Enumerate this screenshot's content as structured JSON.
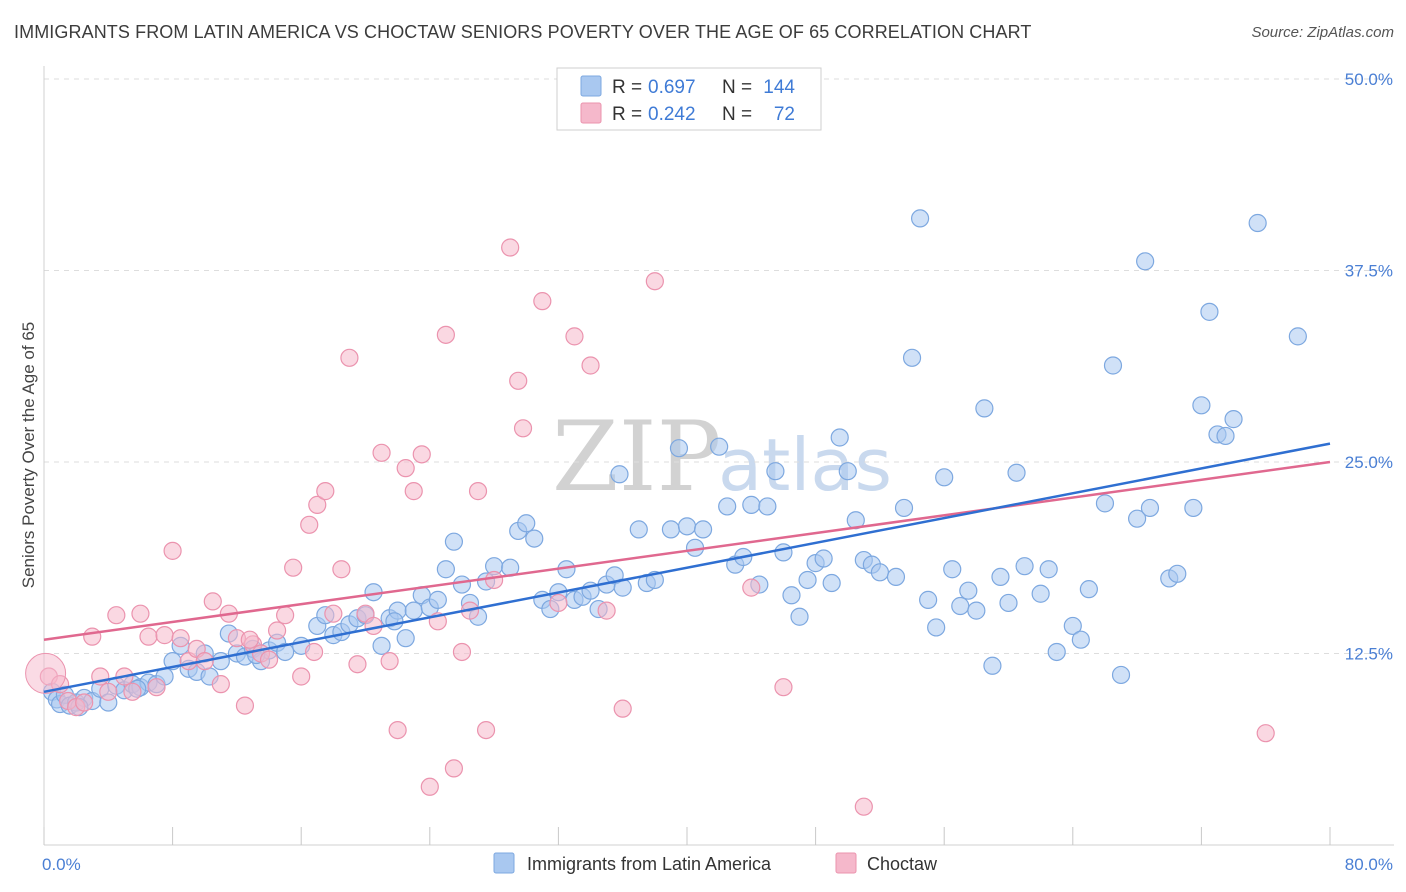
{
  "title": "IMMIGRANTS FROM LATIN AMERICA VS CHOCTAW SENIORS POVERTY OVER THE AGE OF 65 CORRELATION CHART",
  "source": "Source: ZipAtlas.com",
  "watermark": {
    "left": "ZIP",
    "right": "atlas"
  },
  "legend": {
    "rows": [
      {
        "r_label": "R =",
        "r_value": "0.697",
        "n_label": "N =",
        "n_value": "144"
      },
      {
        "r_label": "R =",
        "r_value": "0.242",
        "n_label": "N =",
        "n_value": "72"
      }
    ]
  },
  "colors": {
    "blue_fill": "#a9c8f0",
    "blue_stroke": "#7da8e0",
    "blue_line": "#2f6fd1",
    "pink_fill": "#f5b8cb",
    "pink_stroke": "#eb93ae",
    "pink_line": "#e0688f",
    "tick_text": "#4a7fd4",
    "grid": "#dddddd"
  },
  "chart_data": {
    "type": "scatter",
    "title": "IMMIGRANTS FROM LATIN AMERICA VS CHOCTAW SENIORS POVERTY OVER THE AGE OF 65 CORRELATION CHART",
    "xlabel": "",
    "ylabel": "Seniors Poverty Over the Age of 65",
    "xlim": [
      0,
      80
    ],
    "ylim": [
      0,
      50
    ],
    "x_tick_labels": [
      "0.0%",
      "80.0%"
    ],
    "y_ticks": [
      12.5,
      25.0,
      37.5,
      50.0
    ],
    "y_tick_labels": [
      "12.5%",
      "25.0%",
      "37.5%",
      "50.0%"
    ],
    "grid": "horizontal dashed",
    "legend_position": "top-center",
    "series": [
      {
        "name": "Immigrants from Latin America",
        "color": "#a9c8f0",
        "trend": {
          "x": [
            0,
            80
          ],
          "y": [
            10.0,
            26.2
          ]
        },
        "points": [
          [
            0.5,
            10.0
          ],
          [
            0.8,
            9.5
          ],
          [
            1.0,
            9.2
          ],
          [
            1.3,
            9.8
          ],
          [
            1.6,
            9.1
          ],
          [
            2.0,
            9.3
          ],
          [
            2.5,
            9.6
          ],
          [
            3.0,
            9.4
          ],
          [
            3.5,
            10.2
          ],
          [
            4.0,
            9.3
          ],
          [
            4.5,
            10.4
          ],
          [
            5.0,
            10.1
          ],
          [
            5.5,
            10.5
          ],
          [
            6.0,
            10.3
          ],
          [
            6.5,
            10.6
          ],
          [
            7.0,
            10.5
          ],
          [
            7.5,
            11.0
          ],
          [
            8.0,
            12.0
          ],
          [
            8.5,
            13.0
          ],
          [
            9.0,
            11.5
          ],
          [
            9.5,
            11.3
          ],
          [
            10.0,
            12.5
          ],
          [
            10.3,
            11.0
          ],
          [
            11.0,
            12.0
          ],
          [
            11.5,
            13.8
          ],
          [
            12.0,
            12.5
          ],
          [
            12.5,
            12.3
          ],
          [
            13.0,
            12.8
          ],
          [
            13.5,
            12.0
          ],
          [
            14.0,
            12.7
          ],
          [
            14.5,
            13.2
          ],
          [
            15.0,
            12.6
          ],
          [
            16.0,
            13.0
          ],
          [
            17.0,
            14.3
          ],
          [
            17.5,
            15.0
          ],
          [
            18.0,
            13.7
          ],
          [
            18.5,
            13.9
          ],
          [
            19.0,
            14.4
          ],
          [
            19.5,
            14.8
          ],
          [
            20.0,
            15.0
          ],
          [
            20.5,
            16.5
          ],
          [
            21.0,
            13.0
          ],
          [
            21.5,
            14.8
          ],
          [
            22.0,
            15.3
          ],
          [
            22.5,
            13.5
          ],
          [
            23.0,
            15.3
          ],
          [
            23.5,
            16.3
          ],
          [
            24.0,
            15.5
          ],
          [
            24.5,
            16.0
          ],
          [
            25.0,
            18.0
          ],
          [
            25.5,
            19.8
          ],
          [
            26.0,
            17.0
          ],
          [
            26.5,
            15.8
          ],
          [
            27.0,
            14.9
          ],
          [
            27.5,
            17.2
          ],
          [
            28.0,
            18.2
          ],
          [
            29.0,
            18.1
          ],
          [
            29.5,
            20.5
          ],
          [
            30.0,
            21.0
          ],
          [
            30.5,
            20.0
          ],
          [
            31.0,
            16.0
          ],
          [
            31.5,
            15.4
          ],
          [
            32.0,
            16.5
          ],
          [
            32.5,
            18.0
          ],
          [
            33.0,
            16.0
          ],
          [
            33.5,
            16.2
          ],
          [
            34.0,
            16.6
          ],
          [
            34.5,
            15.4
          ],
          [
            35.0,
            17.0
          ],
          [
            35.5,
            17.6
          ],
          [
            35.8,
            24.2
          ],
          [
            36.0,
            16.8
          ],
          [
            37.0,
            20.6
          ],
          [
            37.5,
            17.1
          ],
          [
            38.0,
            17.3
          ],
          [
            39.0,
            20.6
          ],
          [
            39.5,
            25.9
          ],
          [
            40.0,
            20.8
          ],
          [
            40.5,
            19.4
          ],
          [
            41.0,
            20.6
          ],
          [
            42.0,
            26.0
          ],
          [
            42.5,
            22.1
          ],
          [
            43.0,
            18.3
          ],
          [
            43.5,
            18.8
          ],
          [
            44.0,
            22.2
          ],
          [
            44.5,
            17.0
          ],
          [
            45.0,
            22.1
          ],
          [
            45.5,
            24.4
          ],
          [
            46.0,
            19.1
          ],
          [
            46.5,
            16.3
          ],
          [
            47.0,
            14.9
          ],
          [
            47.5,
            17.3
          ],
          [
            48.0,
            18.4
          ],
          [
            48.5,
            18.7
          ],
          [
            49.0,
            17.1
          ],
          [
            49.5,
            26.6
          ],
          [
            50.0,
            24.4
          ],
          [
            50.5,
            21.2
          ],
          [
            51.0,
            18.6
          ],
          [
            51.5,
            18.3
          ],
          [
            52.0,
            17.8
          ],
          [
            53.0,
            17.5
          ],
          [
            53.5,
            22.0
          ],
          [
            54.0,
            31.8
          ],
          [
            54.5,
            40.9
          ],
          [
            55.0,
            16.0
          ],
          [
            55.5,
            14.2
          ],
          [
            56.0,
            24.0
          ],
          [
            56.5,
            18.0
          ],
          [
            57.0,
            15.6
          ],
          [
            57.5,
            16.6
          ],
          [
            58.0,
            15.3
          ],
          [
            58.5,
            28.5
          ],
          [
            59.0,
            11.7
          ],
          [
            59.5,
            17.5
          ],
          [
            60.0,
            15.8
          ],
          [
            60.5,
            24.3
          ],
          [
            61.0,
            18.2
          ],
          [
            62.0,
            16.4
          ],
          [
            62.5,
            18.0
          ],
          [
            63.0,
            12.6
          ],
          [
            64.0,
            14.3
          ],
          [
            64.5,
            13.4
          ],
          [
            65.0,
            16.7
          ],
          [
            66.0,
            22.3
          ],
          [
            66.5,
            31.3
          ],
          [
            67.0,
            11.1
          ],
          [
            68.0,
            21.3
          ],
          [
            68.5,
            38.1
          ],
          [
            68.8,
            22.0
          ],
          [
            70.0,
            17.4
          ],
          [
            70.5,
            17.7
          ],
          [
            71.5,
            22.0
          ],
          [
            72.0,
            28.7
          ],
          [
            72.5,
            34.8
          ],
          [
            73.0,
            26.8
          ],
          [
            73.5,
            26.7
          ],
          [
            74.0,
            27.8
          ],
          [
            75.5,
            40.6
          ],
          [
            78.0,
            33.2
          ],
          [
            2.2,
            9.0
          ],
          [
            5.8,
            10.2
          ],
          [
            13.2,
            12.4
          ],
          [
            21.8,
            14.6
          ]
        ]
      },
      {
        "name": "Choctaw",
        "color": "#f5b8cb",
        "trend": {
          "x": [
            0,
            80
          ],
          "y": [
            13.4,
            25.0
          ]
        },
        "points": [
          [
            0.3,
            11.0
          ],
          [
            1.0,
            10.5
          ],
          [
            1.5,
            9.4
          ],
          [
            2.0,
            9.0
          ],
          [
            2.5,
            9.3
          ],
          [
            3.0,
            13.6
          ],
          [
            3.5,
            11.0
          ],
          [
            4.0,
            10.0
          ],
          [
            4.5,
            15.0
          ],
          [
            5.0,
            11.0
          ],
          [
            5.5,
            10.0
          ],
          [
            6.0,
            15.1
          ],
          [
            6.5,
            13.6
          ],
          [
            7.0,
            10.3
          ],
          [
            7.5,
            13.7
          ],
          [
            8.0,
            19.2
          ],
          [
            8.5,
            13.5
          ],
          [
            9.0,
            12.0
          ],
          [
            9.5,
            12.8
          ],
          [
            10.0,
            12.0
          ],
          [
            10.5,
            15.9
          ],
          [
            11.0,
            10.5
          ],
          [
            11.5,
            15.1
          ],
          [
            12.0,
            13.5
          ],
          [
            12.5,
            9.1
          ],
          [
            13.0,
            13.1
          ],
          [
            13.5,
            12.5
          ],
          [
            14.0,
            12.1
          ],
          [
            14.5,
            14.0
          ],
          [
            15.0,
            15.0
          ],
          [
            15.5,
            18.1
          ],
          [
            16.0,
            11.0
          ],
          [
            16.5,
            20.9
          ],
          [
            17.0,
            22.2
          ],
          [
            17.5,
            23.1
          ],
          [
            18.0,
            15.1
          ],
          [
            18.5,
            18.0
          ],
          [
            19.0,
            31.8
          ],
          [
            19.5,
            11.8
          ],
          [
            20.0,
            15.1
          ],
          [
            20.5,
            14.3
          ],
          [
            21.0,
            25.6
          ],
          [
            21.5,
            12.0
          ],
          [
            22.0,
            7.5
          ],
          [
            22.5,
            24.6
          ],
          [
            23.0,
            23.1
          ],
          [
            23.5,
            25.5
          ],
          [
            24.0,
            3.8
          ],
          [
            24.5,
            14.6
          ],
          [
            25.0,
            33.3
          ],
          [
            25.5,
            5.0
          ],
          [
            26.0,
            12.6
          ],
          [
            26.5,
            15.3
          ],
          [
            27.0,
            23.1
          ],
          [
            27.5,
            7.5
          ],
          [
            28.0,
            17.3
          ],
          [
            29.0,
            39.0
          ],
          [
            29.5,
            30.3
          ],
          [
            29.8,
            27.2
          ],
          [
            31.0,
            35.5
          ],
          [
            32.0,
            15.8
          ],
          [
            33.0,
            33.2
          ],
          [
            34.0,
            31.3
          ],
          [
            35.0,
            15.3
          ],
          [
            36.0,
            8.9
          ],
          [
            38.0,
            36.8
          ],
          [
            44.0,
            16.8
          ],
          [
            46.0,
            10.3
          ],
          [
            51.0,
            2.5
          ],
          [
            76.0,
            7.3
          ],
          [
            12.8,
            13.4
          ],
          [
            16.8,
            12.6
          ]
        ]
      }
    ]
  },
  "bottom_legend": [
    {
      "label": "Immigrants from Latin America"
    },
    {
      "label": "Choctaw"
    }
  ]
}
